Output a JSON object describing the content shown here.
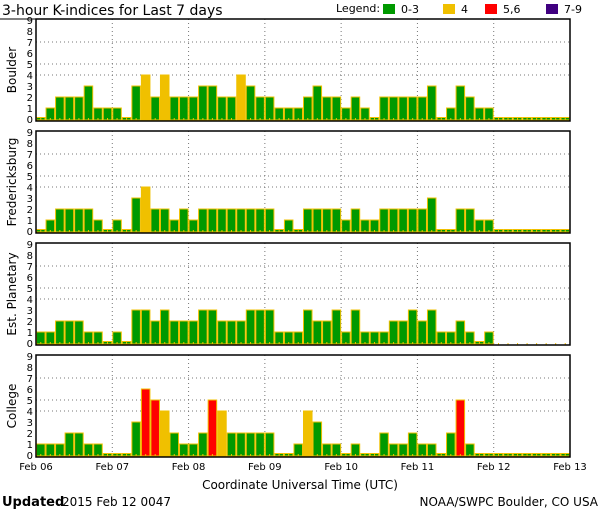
{
  "chart_data": {
    "type": "bar",
    "title": "3-hour K-indices for Last 7 days",
    "xlabel": "Coordinate Universal Time (UTC)",
    "ylim": [
      0,
      9
    ],
    "yticks": [
      "0",
      "1",
      "2",
      "3",
      "4",
      "5",
      "6",
      "7",
      "8",
      "9"
    ],
    "grid_levels": [
      4,
      5,
      7
    ],
    "x_tick_labels": [
      "Feb 06",
      "Feb 07",
      "Feb 08",
      "Feb 09",
      "Feb 10",
      "Feb 11",
      "Feb 12",
      "Feb 13"
    ],
    "bars_per_day": 8,
    "legend": {
      "label": "Legend:",
      "placement": "top-right",
      "items": [
        {
          "label": "0-3",
          "color": "#009900"
        },
        {
          "label": "4",
          "color": "#f0c000"
        },
        {
          "label": "5,6",
          "color": "#ff0000"
        },
        {
          "label": "7-9",
          "color": "#400080"
        }
      ]
    },
    "bar_outline_color": "#f0c000",
    "series": [
      {
        "name": "Boulder",
        "values": [
          0,
          1,
          2,
          2,
          2,
          3,
          1,
          1,
          1,
          0,
          3,
          4,
          2,
          4,
          2,
          2,
          2,
          3,
          3,
          2,
          2,
          4,
          3,
          2,
          2,
          1,
          1,
          1,
          2,
          3,
          2,
          2,
          1,
          2,
          1,
          0,
          2,
          2,
          2,
          2,
          2,
          3,
          0,
          1,
          3,
          2,
          1,
          1,
          0,
          0,
          0,
          0,
          0,
          0,
          0,
          0
        ]
      },
      {
        "name": "Fredericksburg",
        "values": [
          0,
          1,
          2,
          2,
          2,
          2,
          1,
          0,
          1,
          0,
          3,
          4,
          2,
          2,
          1,
          2,
          1,
          2,
          2,
          2,
          2,
          2,
          2,
          2,
          2,
          0,
          1,
          0,
          2,
          2,
          2,
          2,
          1,
          2,
          1,
          1,
          2,
          2,
          2,
          2,
          2,
          3,
          0,
          0,
          2,
          2,
          1,
          1,
          0,
          0,
          0,
          0,
          0,
          0,
          0,
          0
        ]
      },
      {
        "name": "Est. Planetary",
        "values": [
          1,
          1,
          2,
          2,
          2,
          1,
          1,
          0,
          1,
          0,
          3,
          3,
          2,
          3,
          2,
          2,
          2,
          3,
          3,
          2,
          2,
          2,
          3,
          3,
          3,
          1,
          1,
          1,
          3,
          2,
          2,
          3,
          1,
          3,
          1,
          1,
          1,
          2,
          2,
          3,
          2,
          3,
          1,
          1,
          2,
          1,
          0,
          1,
          null,
          null,
          null,
          null,
          null,
          null,
          null,
          null
        ]
      },
      {
        "name": "College",
        "values": [
          1,
          1,
          1,
          2,
          2,
          1,
          1,
          0,
          0,
          0,
          3,
          6,
          5,
          4,
          2,
          1,
          1,
          2,
          5,
          4,
          2,
          2,
          2,
          2,
          2,
          0,
          0,
          1,
          4,
          3,
          1,
          1,
          0,
          1,
          0,
          0,
          2,
          1,
          1,
          2,
          1,
          1,
          0,
          2,
          5,
          1,
          0,
          0,
          0,
          0,
          0,
          0,
          0,
          0,
          0,
          0
        ]
      }
    ]
  },
  "footer": {
    "updated_label": "Updated",
    "updated_value": "2015 Feb 12 0047",
    "credit": "NOAA/SWPC Boulder, CO USA"
  }
}
